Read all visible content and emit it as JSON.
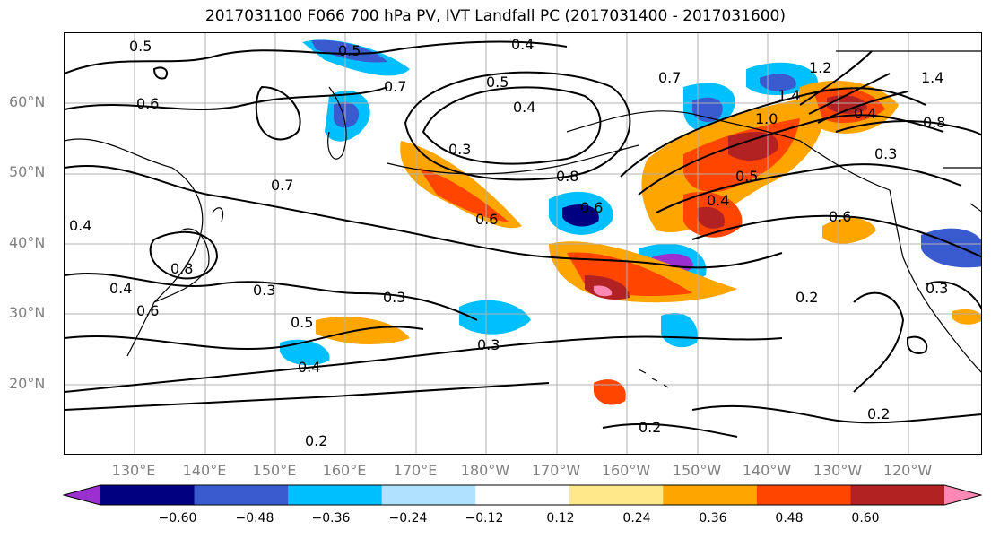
{
  "title": "2017031100 F066 700 hPa PV, IVT Landfall PC (2017031400 - 2017031600)",
  "lat_labels": [
    "60°N",
    "50°N",
    "40°N",
    "30°N",
    "20°N"
  ],
  "lon_labels": [
    "130°E",
    "140°E",
    "150°E",
    "160°E",
    "170°E",
    "180°W",
    "170°W",
    "160°W",
    "150°W",
    "140°W",
    "130°W",
    "120°W"
  ],
  "colorbar": {
    "ticks": [
      "−0.60",
      "−0.48",
      "−0.36",
      "−0.24",
      "−0.12",
      "0.12",
      "0.24",
      "0.36",
      "0.48",
      "0.60"
    ],
    "colors": [
      "#9b30d0",
      "#000080",
      "#3a5bd0",
      "#00bfff",
      "#b0e2ff",
      "#ffffff",
      "#ffe88a",
      "#ffa500",
      "#ff4500",
      "#b22222",
      "#ff88b4"
    ]
  },
  "contour_labels": [
    "0.5",
    "0.4",
    "0.7",
    "0.5",
    "0.4",
    "0.3",
    "0.6",
    "0.7",
    "0.6",
    "0.5",
    "0.4",
    "0.8",
    "0.4",
    "0.6",
    "0.3",
    "0.3",
    "0.5",
    "0.4",
    "0.3",
    "0.2",
    "0.2",
    "0.2",
    "0.6",
    "0.6",
    "0.8",
    "0.4",
    "1.0",
    "1.4",
    "1.2",
    "0.8",
    "0.3",
    "1.4",
    "0.5",
    "0.4",
    "0.7",
    "0.3",
    "0.2"
  ]
}
